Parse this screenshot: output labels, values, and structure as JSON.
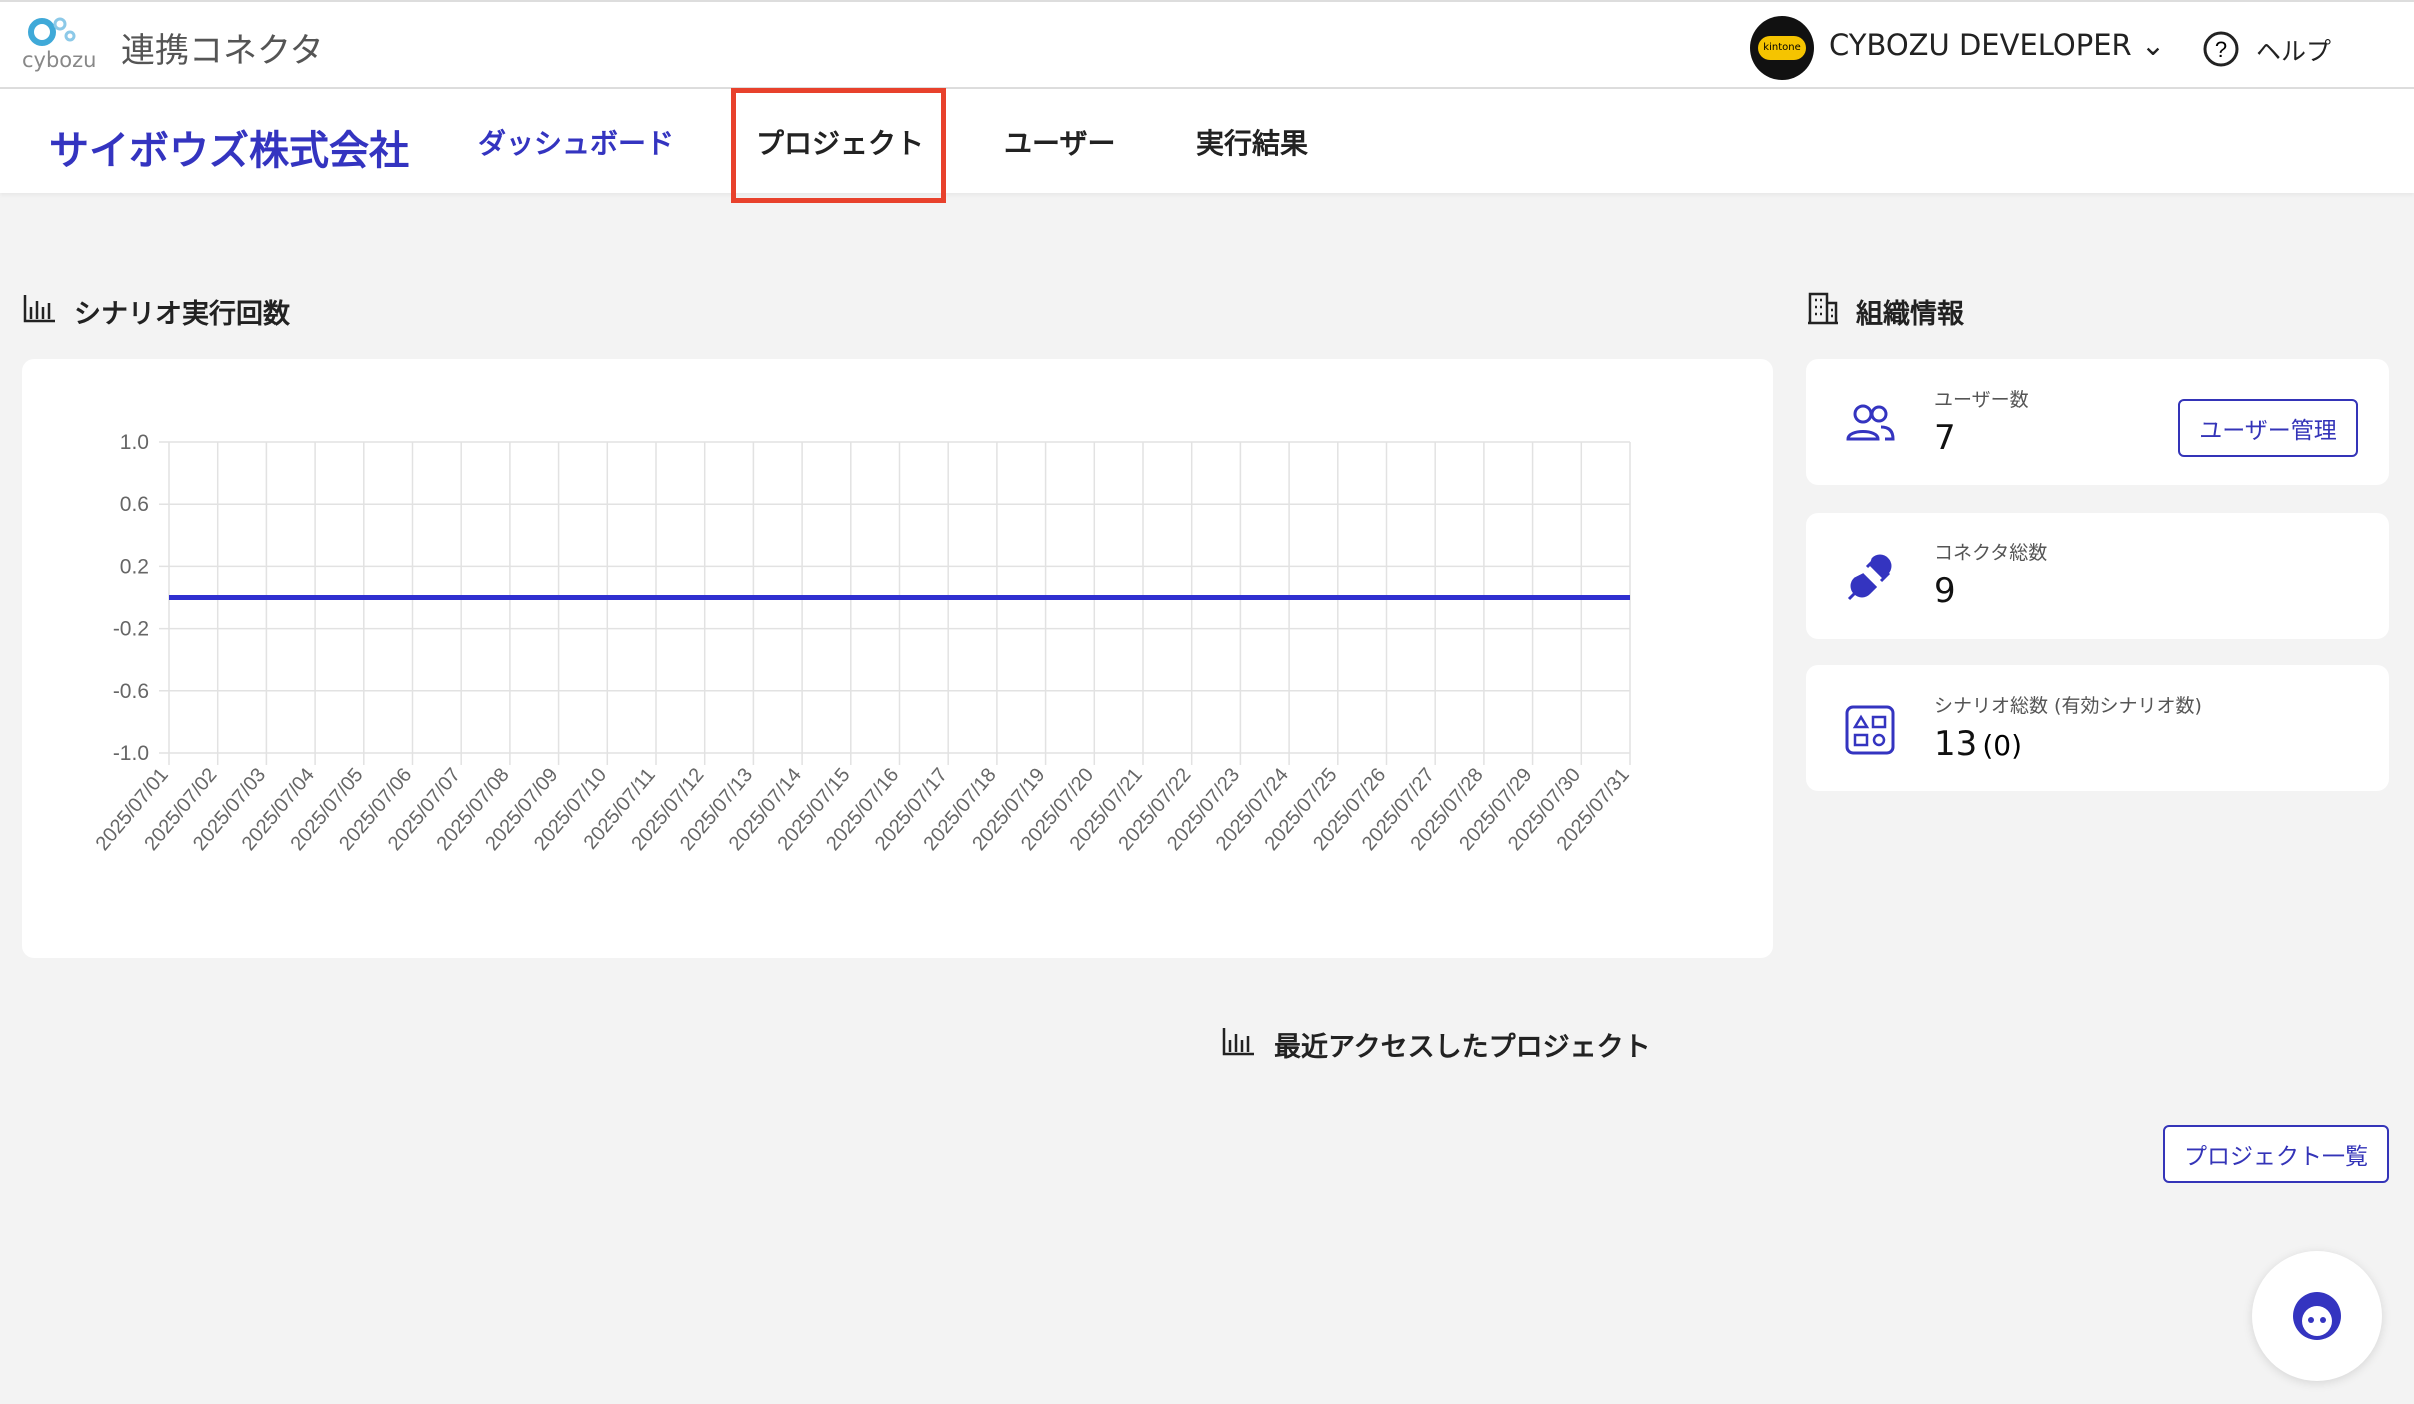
{
  "header": {
    "logo_text": "cybozu",
    "app_name": "連携コネクタ",
    "badge": "kintone",
    "user": "CYBOZU DEVELOPER",
    "help": "ヘルプ"
  },
  "nav": {
    "company": "サイボウズ株式会社",
    "items": [
      "ダッシュボード",
      "プロジェクト",
      "ユーザー",
      "実行結果"
    ]
  },
  "chart_section": {
    "title": "シナリオ実行回数"
  },
  "chart_data": {
    "type": "line",
    "categories": [
      "2025/07/01",
      "2025/07/02",
      "2025/07/03",
      "2025/07/04",
      "2025/07/05",
      "2025/07/06",
      "2025/07/07",
      "2025/07/08",
      "2025/07/09",
      "2025/07/10",
      "2025/07/11",
      "2025/07/12",
      "2025/07/13",
      "2025/07/14",
      "2025/07/15",
      "2025/07/16",
      "2025/07/17",
      "2025/07/18",
      "2025/07/19",
      "2025/07/20",
      "2025/07/21",
      "2025/07/22",
      "2025/07/23",
      "2025/07/24",
      "2025/07/25",
      "2025/07/26",
      "2025/07/27",
      "2025/07/28",
      "2025/07/29",
      "2025/07/30",
      "2025/07/31"
    ],
    "series": [
      {
        "color": "#2f2fd0",
        "values": [
          0,
          0,
          0,
          0,
          0,
          0,
          0,
          0,
          0,
          0,
          0,
          0,
          0,
          0,
          0,
          0,
          0,
          0,
          0,
          0,
          0,
          0,
          0,
          0,
          0,
          0,
          0,
          0,
          0,
          0,
          0
        ]
      }
    ],
    "ylim": [
      -1,
      1
    ],
    "yticks": [
      {
        "value": -1,
        "label": "-1.0"
      },
      -0.6,
      -0.2,
      0.2,
      0.6,
      {
        "value": 1,
        "label": "1.0"
      }
    ],
    "grid": true
  },
  "org": {
    "title": "組織情報",
    "cards": [
      {
        "label": "ユーザー数",
        "value": "7",
        "button": "ユーザー管理"
      },
      {
        "label": "コネクタ総数",
        "value": "9"
      },
      {
        "label": "シナリオ総数 (有効シナリオ数)",
        "value": "13",
        "sub": "(0)"
      }
    ]
  },
  "recent": {
    "title": "最近アクセスしたプロジェクト",
    "button": "プロジェクト一覧"
  }
}
